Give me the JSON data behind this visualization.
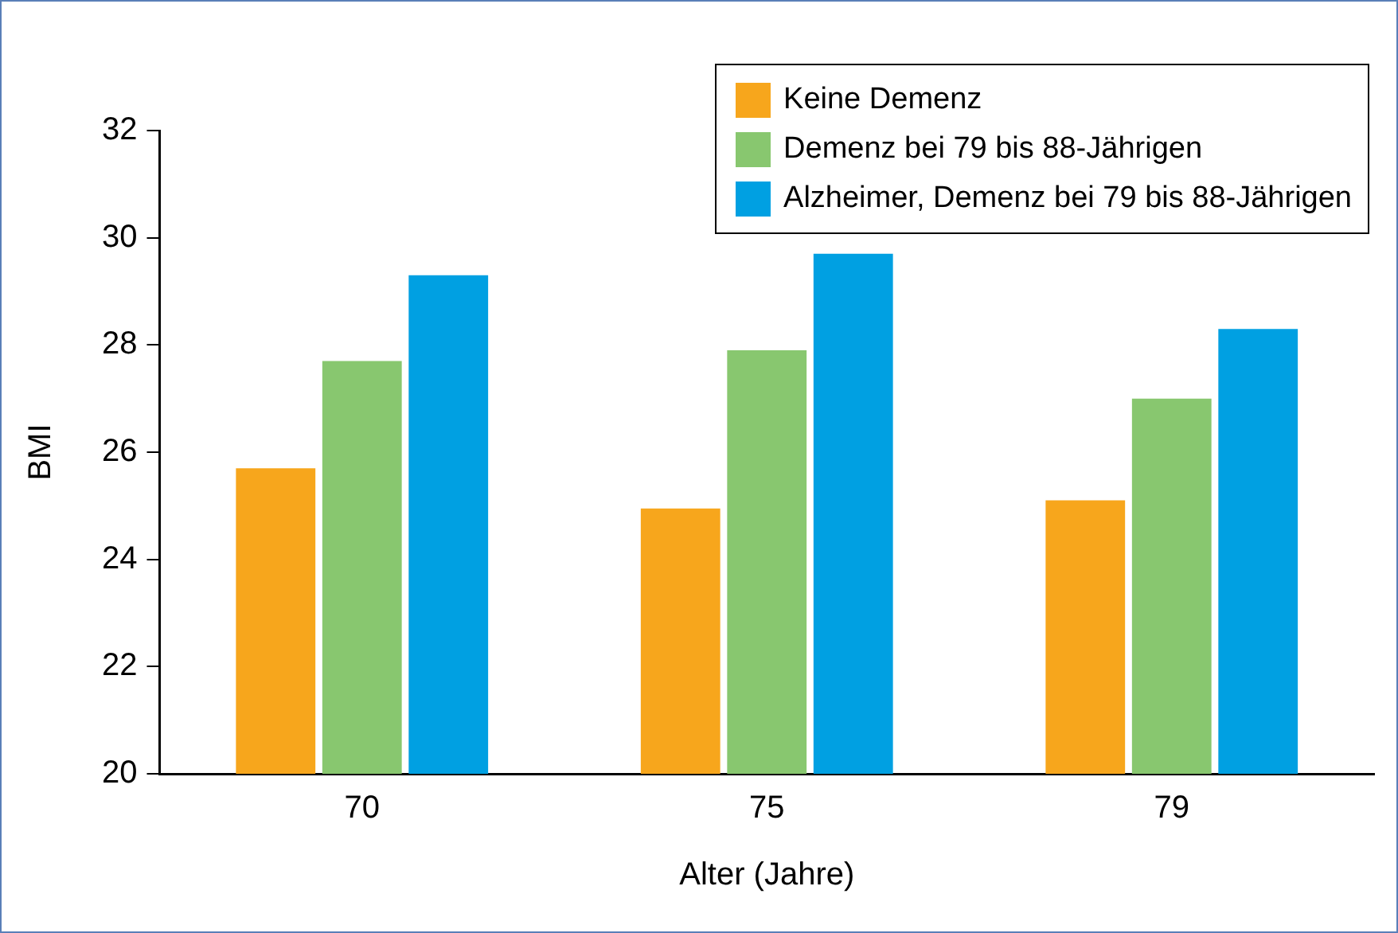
{
  "chart_data": {
    "type": "bar",
    "xlabel": "Alter (Jahre)",
    "ylabel": "BMI",
    "categories": [
      "70",
      "75",
      "79"
    ],
    "series": [
      {
        "name": "Keine Demenz",
        "color": "#f7a61c",
        "values": [
          25.7,
          24.95,
          25.1
        ]
      },
      {
        "name": "Demenz bei 79 bis 88-Jährigen",
        "color": "#88c76f",
        "values": [
          27.7,
          27.9,
          27.0
        ]
      },
      {
        "name": "Alzheimer, Demenz bei 79 bis 88-Jährigen",
        "color": "#00a0e2",
        "values": [
          29.3,
          29.7,
          28.3
        ]
      }
    ],
    "ylim": [
      20,
      32
    ],
    "yticks": [
      20,
      22,
      24,
      26,
      28,
      30,
      32
    ],
    "grid": false,
    "legend": "top right"
  }
}
